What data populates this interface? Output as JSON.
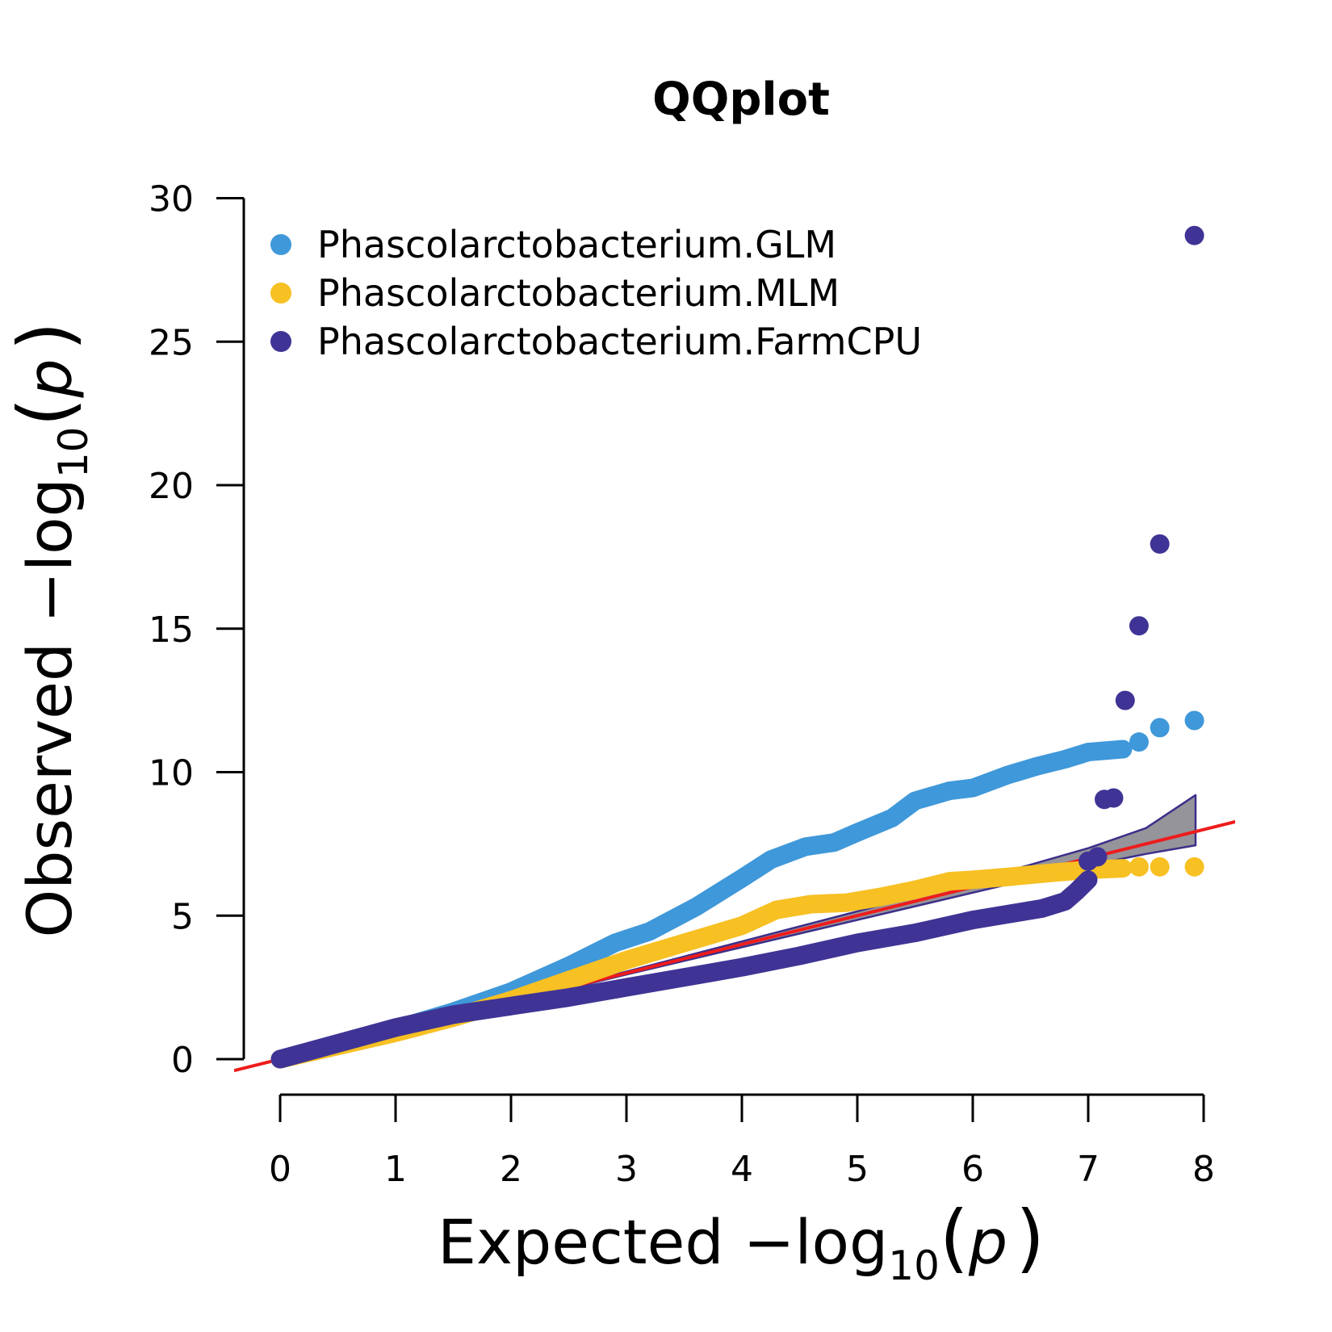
{
  "chart_data": {
    "type": "scatter",
    "title": "QQplot",
    "xlabel": {
      "prefix": "Expected  −log",
      "sub": "10",
      "open": "(",
      "var": "p",
      "close": ")"
    },
    "ylabel": {
      "prefix": "Observed  −log",
      "sub": "10",
      "open": "(",
      "var": "p",
      "close": ")"
    },
    "xlim": [
      0,
      8
    ],
    "ylim": [
      0,
      30
    ],
    "x_ticks": [
      0,
      1,
      2,
      3,
      4,
      5,
      6,
      7,
      8
    ],
    "y_ticks": [
      0,
      5,
      10,
      15,
      20,
      25,
      30
    ],
    "legend_position": "top-left",
    "reference_line": {
      "slope": 1,
      "intercept": 0,
      "color": "#ee1c1c"
    },
    "confidence_band": {
      "fill": "#8a8890",
      "stroke": "#3b2f8a",
      "lower": [
        [
          0,
          0
        ],
        [
          3,
          2.95
        ],
        [
          5,
          4.85
        ],
        [
          6,
          5.8
        ],
        [
          7,
          6.75
        ],
        [
          7.5,
          7.15
        ],
        [
          7.93,
          7.45
        ]
      ],
      "upper": [
        [
          0,
          0
        ],
        [
          3,
          3.05
        ],
        [
          5,
          5.15
        ],
        [
          6,
          6.2
        ],
        [
          7,
          7.35
        ],
        [
          7.5,
          8.05
        ],
        [
          7.93,
          9.2
        ]
      ]
    },
    "series": [
      {
        "name": "Phascolarctobacterium.GLM",
        "color": "#3f98d9",
        "curve": [
          [
            0,
            0
          ],
          [
            1,
            1.05
          ],
          [
            1.5,
            1.65
          ],
          [
            2,
            2.35
          ],
          [
            2.5,
            3.25
          ],
          [
            2.9,
            4.05
          ],
          [
            3.2,
            4.45
          ],
          [
            3.6,
            5.3
          ],
          [
            4,
            6.3
          ],
          [
            4.25,
            6.95
          ],
          [
            4.55,
            7.4
          ],
          [
            4.8,
            7.55
          ],
          [
            5,
            7.9
          ],
          [
            5.3,
            8.4
          ],
          [
            5.5,
            9.0
          ],
          [
            5.8,
            9.35
          ],
          [
            6,
            9.45
          ],
          [
            6.3,
            9.9
          ],
          [
            6.55,
            10.2
          ],
          [
            6.8,
            10.45
          ],
          [
            7,
            10.7
          ],
          [
            7.3,
            10.8
          ]
        ],
        "outliers": [
          [
            7.44,
            11.05
          ],
          [
            7.62,
            11.55
          ],
          [
            7.92,
            11.8
          ]
        ]
      },
      {
        "name": "Phascolarctobacterium.MLM",
        "color": "#f7c023",
        "curve": [
          [
            0,
            0
          ],
          [
            1,
            0.92
          ],
          [
            1.5,
            1.45
          ],
          [
            2,
            2.05
          ],
          [
            2.5,
            2.75
          ],
          [
            3,
            3.45
          ],
          [
            3.5,
            4.05
          ],
          [
            4,
            4.65
          ],
          [
            4.3,
            5.2
          ],
          [
            4.6,
            5.4
          ],
          [
            4.9,
            5.45
          ],
          [
            5.2,
            5.65
          ],
          [
            5.5,
            5.9
          ],
          [
            5.8,
            6.2
          ],
          [
            6,
            6.25
          ],
          [
            6.3,
            6.35
          ],
          [
            6.7,
            6.5
          ],
          [
            7,
            6.6
          ],
          [
            7.3,
            6.65
          ]
        ],
        "outliers": [
          [
            7.44,
            6.7
          ],
          [
            7.62,
            6.7
          ],
          [
            7.92,
            6.7
          ]
        ]
      },
      {
        "name": "Phascolarctobacterium.FarmCPU",
        "color": "#3f3495",
        "curve": [
          [
            0,
            0
          ],
          [
            1,
            1.1
          ],
          [
            1.5,
            1.55
          ],
          [
            2,
            1.85
          ],
          [
            2.5,
            2.15
          ],
          [
            3,
            2.5
          ],
          [
            3.5,
            2.85
          ],
          [
            4,
            3.2
          ],
          [
            4.5,
            3.6
          ],
          [
            5,
            4.05
          ],
          [
            5.5,
            4.4
          ],
          [
            6,
            4.85
          ],
          [
            6.3,
            5.05
          ],
          [
            6.6,
            5.25
          ],
          [
            6.8,
            5.5
          ],
          [
            6.9,
            5.85
          ],
          [
            7.0,
            6.25
          ]
        ],
        "outliers": [
          [
            7.0,
            6.9
          ],
          [
            7.08,
            7.05
          ],
          [
            7.14,
            9.05
          ],
          [
            7.22,
            9.1
          ],
          [
            7.32,
            12.5
          ],
          [
            7.44,
            15.1
          ],
          [
            7.62,
            17.95
          ],
          [
            7.92,
            28.7
          ]
        ]
      }
    ]
  }
}
